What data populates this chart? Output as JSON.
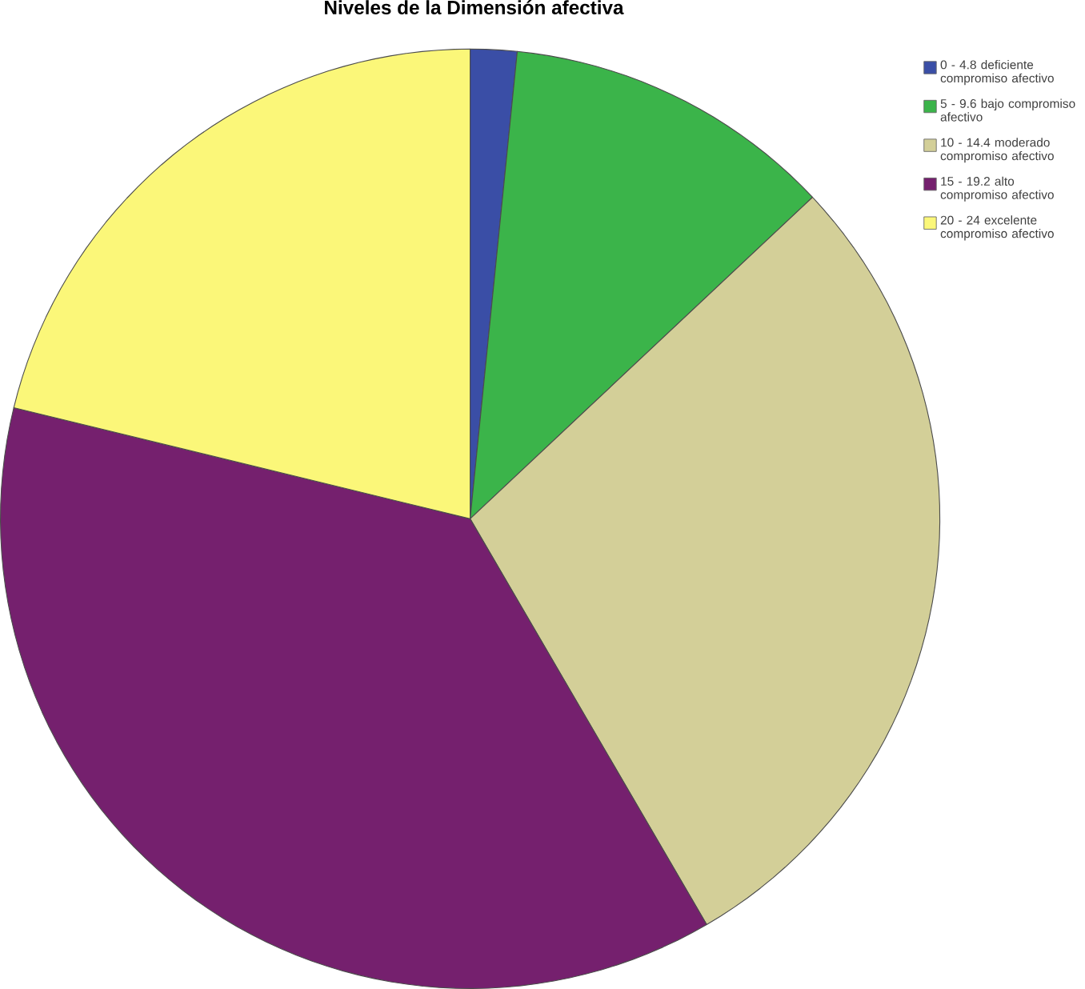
{
  "chart_data": {
    "type": "pie",
    "title": "Niveles de la Dimensión afectiva",
    "categories": [
      "0 - 4.8 deficiente compromiso afectivo",
      "5 - 9.6 bajo compromiso afectivo",
      "10 - 14.4 moderado compromiso afectivo",
      "15 - 19.2 alto compromiso afectivo",
      "20 - 24 excelente compromiso afectivo"
    ],
    "values": [
      1.6,
      11.4,
      28.6,
      37.2,
      21.2
    ],
    "colors": [
      "#3a4ea6",
      "#3bb44a",
      "#d3cf98",
      "#75206e",
      "#fbf779"
    ],
    "legend": "top right"
  }
}
